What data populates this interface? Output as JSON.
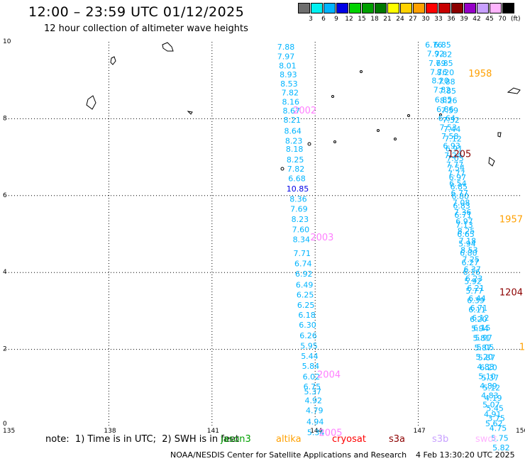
{
  "title": "12:00 – 23:59 UTC 01/12/2025",
  "subtitle": "12 hour collection of altimeter wave heights",
  "legend": {
    "colors": [
      "#6e6e6e",
      "#00f0f0",
      "#00b4ff",
      "#0000e6",
      "#00d200",
      "#00a000",
      "#007800",
      "#ffff00",
      "#ffd200",
      "#ffa000",
      "#ff0000",
      "#c80000",
      "#8c0000",
      "#9600c8",
      "#c8a0ff",
      "#ffb4ff",
      "#000000"
    ],
    "labels": [
      "3",
      "6",
      "9",
      "12",
      "15",
      "18",
      "21",
      "24",
      "27",
      "30",
      "33",
      "36",
      "39",
      "42",
      "45",
      "70"
    ],
    "unit": "(ft)"
  },
  "axes": {
    "x_ticks": [
      "135",
      "138",
      "141",
      "144",
      "147",
      "150"
    ],
    "y_ticks": [
      "10",
      "8",
      "6",
      "4",
      "2",
      "0"
    ],
    "x_range": [
      135,
      150
    ],
    "y_range": [
      0,
      10
    ]
  },
  "tracks": [
    {
      "color": "#00b4ff",
      "points": [
        {
          "lon": 143.15,
          "lat": 9.8,
          "v": "7.88"
        },
        {
          "lon": 143.15,
          "lat": 9.55,
          "v": "7.97"
        },
        {
          "lon": 143.2,
          "lat": 9.31,
          "v": "8.01"
        },
        {
          "lon": 143.22,
          "lat": 9.08,
          "v": "8.93"
        },
        {
          "lon": 143.24,
          "lat": 8.84,
          "v": "8.53"
        },
        {
          "lon": 143.27,
          "lat": 8.61,
          "v": "7.82"
        },
        {
          "lon": 143.29,
          "lat": 8.37,
          "v": "8.16"
        },
        {
          "lon": 143.31,
          "lat": 8.14,
          "v": "8.67"
        },
        {
          "lon": 143.33,
          "lat": 7.9,
          "v": "8.21"
        },
        {
          "lon": 143.35,
          "lat": 7.61,
          "v": "8.64"
        },
        {
          "lon": 143.38,
          "lat": 7.35,
          "v": "8.23"
        },
        {
          "lon": 143.4,
          "lat": 7.14,
          "v": "8.18"
        },
        {
          "lon": 143.42,
          "lat": 6.86,
          "v": "8.25"
        },
        {
          "lon": 143.44,
          "lat": 6.62,
          "v": "7.82"
        },
        {
          "lon": 143.47,
          "lat": 6.37,
          "v": "6.68"
        },
        {
          "lon": 143.49,
          "lat": 6.11,
          "v": "10.85",
          "c": "#0000e6"
        },
        {
          "lon": 143.51,
          "lat": 5.84,
          "v": "8.36"
        },
        {
          "lon": 143.53,
          "lat": 5.58,
          "v": "7.69"
        },
        {
          "lon": 143.56,
          "lat": 5.31,
          "v": "8.23"
        },
        {
          "lon": 143.58,
          "lat": 5.05,
          "v": "7.60"
        },
        {
          "lon": 143.6,
          "lat": 4.79,
          "v": "8.34"
        },
        {
          "lon": 143.62,
          "lat": 4.43,
          "v": "7.71"
        },
        {
          "lon": 143.65,
          "lat": 4.16,
          "v": "6.74"
        },
        {
          "lon": 143.67,
          "lat": 3.89,
          "v": "6.92"
        },
        {
          "lon": 143.69,
          "lat": 3.61,
          "v": "6.49"
        },
        {
          "lon": 143.71,
          "lat": 3.35,
          "v": "6.25"
        },
        {
          "lon": 143.73,
          "lat": 3.08,
          "v": "6.25"
        },
        {
          "lon": 143.76,
          "lat": 2.82,
          "v": "6.18"
        },
        {
          "lon": 143.78,
          "lat": 2.56,
          "v": "6.30"
        },
        {
          "lon": 143.8,
          "lat": 2.29,
          "v": "6.26"
        },
        {
          "lon": 143.82,
          "lat": 2.02,
          "v": "5.95"
        },
        {
          "lon": 143.84,
          "lat": 1.75,
          "v": "5.44"
        },
        {
          "lon": 143.87,
          "lat": 1.49,
          "v": "5.84"
        },
        {
          "lon": 143.89,
          "lat": 1.22,
          "v": "6.02"
        },
        {
          "lon": 143.91,
          "lat": 0.96,
          "v": "6.75"
        },
        {
          "lon": 143.93,
          "lat": 0.83,
          "v": "5.37"
        },
        {
          "lon": 143.95,
          "lat": 0.6,
          "v": "4.92"
        },
        {
          "lon": 143.98,
          "lat": 0.34,
          "v": "4.79"
        },
        {
          "lon": 144.0,
          "lat": 0.05,
          "v": "4.94"
        },
        {
          "lon": 144.02,
          "lat": -0.23,
          "v": "5.34"
        }
      ]
    },
    {
      "color": "#00b4ff",
      "points": [
        {
          "lon": 147.45,
          "lat": 9.85,
          "v": "6.76"
        },
        {
          "lon": 147.5,
          "lat": 9.62,
          "v": "7.92"
        },
        {
          "lon": 147.55,
          "lat": 9.37,
          "v": "7.69"
        },
        {
          "lon": 147.59,
          "lat": 9.14,
          "v": "7.76"
        },
        {
          "lon": 147.64,
          "lat": 8.92,
          "v": "8.20"
        },
        {
          "lon": 147.69,
          "lat": 8.68,
          "v": "7.82"
        },
        {
          "lon": 147.73,
          "lat": 8.42,
          "v": "6.85"
        },
        {
          "lon": 147.78,
          "lat": 8.17,
          "v": "6.86"
        },
        {
          "lon": 147.83,
          "lat": 7.94,
          "v": "6.64"
        },
        {
          "lon": 147.87,
          "lat": 7.7,
          "v": "7.53"
        },
        {
          "lon": 147.92,
          "lat": 7.47,
          "v": "7.58"
        },
        {
          "lon": 147.97,
          "lat": 7.22,
          "v": "6.93"
        },
        {
          "lon": 148.01,
          "lat": 6.97,
          "v": "7.24"
        },
        {
          "lon": 148.06,
          "lat": 6.73,
          "v": "7.77"
        },
        {
          "lon": 148.11,
          "lat": 6.5,
          "v": "7.77"
        },
        {
          "lon": 148.15,
          "lat": 6.25,
          "v": "6.54"
        },
        {
          "lon": 148.2,
          "lat": 6.0,
          "v": "6.77"
        },
        {
          "lon": 148.25,
          "lat": 5.75,
          "v": "7.08"
        },
        {
          "lon": 148.29,
          "lat": 5.5,
          "v": "7.36"
        },
        {
          "lon": 148.34,
          "lat": 5.26,
          "v": "6.97"
        },
        {
          "lon": 148.39,
          "lat": 5.01,
          "v": "8.25"
        },
        {
          "lon": 148.43,
          "lat": 4.75,
          "v": "7.18"
        },
        {
          "lon": 148.48,
          "lat": 4.51,
          "v": "8.53"
        },
        {
          "lon": 148.53,
          "lat": 4.27,
          "v": "7.25"
        },
        {
          "lon": 148.57,
          "lat": 4.01,
          "v": "6.37"
        },
        {
          "lon": 148.62,
          "lat": 3.77,
          "v": "6.23"
        },
        {
          "lon": 148.67,
          "lat": 3.52,
          "v": "6.21"
        },
        {
          "lon": 148.71,
          "lat": 3.26,
          "v": "6.44"
        },
        {
          "lon": 148.76,
          "lat": 3.01,
          "v": "6.71"
        },
        {
          "lon": 148.81,
          "lat": 2.75,
          "v": "6.12"
        },
        {
          "lon": 148.85,
          "lat": 2.49,
          "v": "6.15"
        },
        {
          "lon": 148.9,
          "lat": 2.23,
          "v": "5.97"
        },
        {
          "lon": 148.95,
          "lat": 1.98,
          "v": "5.05"
        },
        {
          "lon": 148.99,
          "lat": 1.72,
          "v": "5.87"
        },
        {
          "lon": 149.04,
          "lat": 1.46,
          "v": "6.20"
        },
        {
          "lon": 149.09,
          "lat": 1.19,
          "v": "5.37"
        },
        {
          "lon": 149.13,
          "lat": 0.93,
          "v": "5.12"
        },
        {
          "lon": 149.18,
          "lat": 0.66,
          "v": "4.19"
        },
        {
          "lon": 149.23,
          "lat": 0.4,
          "v": "5.45"
        },
        {
          "lon": 149.27,
          "lat": 0.14,
          "v": "3.75"
        },
        {
          "lon": 149.32,
          "lat": -0.12,
          "v": "4.75"
        },
        {
          "lon": 149.37,
          "lat": -0.38,
          "v": "5.75"
        },
        {
          "lon": 149.41,
          "lat": -0.63,
          "v": "5.82"
        }
      ]
    },
    {
      "color": "#00b4ff",
      "points": [
        {
          "lon": 147.7,
          "lat": 9.85,
          "v": "6.85"
        },
        {
          "lon": 147.73,
          "lat": 9.6,
          "v": "7.82"
        },
        {
          "lon": 147.76,
          "lat": 9.37,
          "v": "7.85"
        },
        {
          "lon": 147.79,
          "lat": 9.13,
          "v": "8.20"
        },
        {
          "lon": 147.82,
          "lat": 8.89,
          "v": "7.88"
        },
        {
          "lon": 147.85,
          "lat": 8.65,
          "v": "7.85"
        },
        {
          "lon": 147.88,
          "lat": 8.4,
          "v": "8.26"
        },
        {
          "lon": 147.91,
          "lat": 8.15,
          "v": "7.59"
        },
        {
          "lon": 147.95,
          "lat": 7.9,
          "v": "7.32"
        },
        {
          "lon": 147.98,
          "lat": 7.66,
          "v": "7.44"
        },
        {
          "lon": 148.01,
          "lat": 7.41,
          "v": "7.12"
        },
        {
          "lon": 148.04,
          "lat": 7.15,
          "v": "6.91"
        },
        {
          "lon": 148.07,
          "lat": 6.9,
          "v": "7.03"
        },
        {
          "lon": 148.1,
          "lat": 6.65,
          "v": "7.54"
        },
        {
          "lon": 148.14,
          "lat": 6.4,
          "v": "6.97"
        },
        {
          "lon": 148.18,
          "lat": 6.16,
          "v": "6.85"
        },
        {
          "lon": 148.22,
          "lat": 5.91,
          "v": "6.80"
        },
        {
          "lon": 148.26,
          "lat": 5.66,
          "v": "6.83"
        },
        {
          "lon": 148.3,
          "lat": 5.42,
          "v": "6.71"
        },
        {
          "lon": 148.34,
          "lat": 5.17,
          "v": "7.13"
        },
        {
          "lon": 148.38,
          "lat": 4.93,
          "v": "6.65"
        },
        {
          "lon": 148.42,
          "lat": 4.68,
          "v": "5.94"
        },
        {
          "lon": 148.46,
          "lat": 4.44,
          "v": "6.80"
        },
        {
          "lon": 148.51,
          "lat": 4.19,
          "v": "6.27"
        },
        {
          "lon": 148.55,
          "lat": 3.94,
          "v": "6.16"
        },
        {
          "lon": 148.59,
          "lat": 3.7,
          "v": "5.92"
        },
        {
          "lon": 148.63,
          "lat": 3.45,
          "v": "5.77"
        },
        {
          "lon": 148.67,
          "lat": 3.2,
          "v": "6.39"
        },
        {
          "lon": 148.71,
          "lat": 2.96,
          "v": "6.11"
        },
        {
          "lon": 148.75,
          "lat": 2.71,
          "v": "6.20"
        },
        {
          "lon": 148.79,
          "lat": 2.47,
          "v": "5.94"
        },
        {
          "lon": 148.84,
          "lat": 2.22,
          "v": "5.81"
        },
        {
          "lon": 148.88,
          "lat": 1.97,
          "v": "5.87"
        },
        {
          "lon": 148.92,
          "lat": 1.73,
          "v": "5.20"
        },
        {
          "lon": 148.96,
          "lat": 1.48,
          "v": "4.83"
        },
        {
          "lon": 149.0,
          "lat": 1.23,
          "v": "5.10"
        },
        {
          "lon": 149.04,
          "lat": 0.98,
          "v": "4.89"
        },
        {
          "lon": 149.08,
          "lat": 0.73,
          "v": "4.83"
        },
        {
          "lon": 149.12,
          "lat": 0.49,
          "v": "5.07"
        },
        {
          "lon": 149.16,
          "lat": 0.24,
          "v": "4.91"
        },
        {
          "lon": 149.2,
          "lat": 0.0,
          "v": "5.62"
        }
      ]
    }
  ],
  "day_labels": [
    {
      "lon": 143.7,
      "lat": 8.14,
      "text": "2002",
      "color": "#ff80ff"
    },
    {
      "lon": 144.2,
      "lat": 4.83,
      "text": "2003",
      "color": "#ff80ff"
    },
    {
      "lon": 144.4,
      "lat": 1.26,
      "text": "2004",
      "color": "#ff80ff"
    },
    {
      "lon": 144.45,
      "lat": -0.25,
      "text": "2005",
      "color": "#ff80ff"
    },
    {
      "lon": 148.8,
      "lat": 9.1,
      "text": "1958",
      "color": "#ffa000"
    },
    {
      "lon": 149.7,
      "lat": 5.3,
      "text": "1957",
      "color": "#ffa000"
    },
    {
      "lon": 148.2,
      "lat": 7.0,
      "text": "1205",
      "color": "#8c0000"
    },
    {
      "lon": 149.7,
      "lat": 3.4,
      "text": "1204",
      "color": "#8c0000"
    },
    {
      "lon": 150.02,
      "lat": 1.98,
      "text": "1",
      "color": "#ffa000"
    }
  ],
  "note": "note:  1) Time is in UTC;  2) SWH is in feet",
  "satellites": [
    {
      "name": "jason3",
      "color": "#00a000"
    },
    {
      "name": "altika",
      "color": "#ffa000"
    },
    {
      "name": "cryosat",
      "color": "#ff0000"
    },
    {
      "name": "s3a",
      "color": "#8c0000"
    },
    {
      "name": "s3b",
      "color": "#c8a0ff"
    },
    {
      "name": "swot",
      "color": "#ffb4ff"
    }
  ],
  "footer": "NOAA/NESDIS Center for Satellite Applications and Research",
  "timestamp": "4 Feb 13:30:20 UTC 2025"
}
